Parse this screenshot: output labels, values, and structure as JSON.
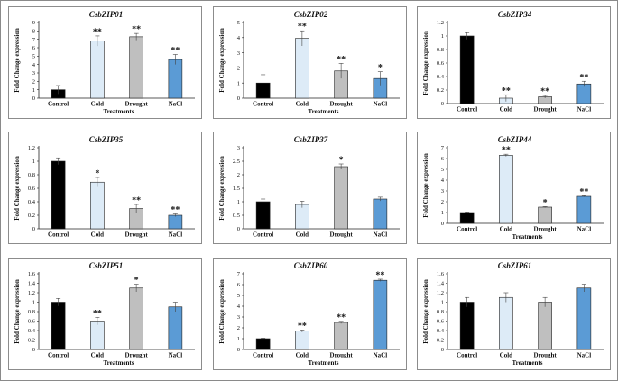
{
  "styles": {
    "bar_colors": [
      "#000000",
      "#ddebf7",
      "#bfbfbf",
      "#5b9bd5"
    ],
    "bar_stroke": "#222222",
    "axis_color": "#222222"
  },
  "chart_data": [
    {
      "type": "bar",
      "title": "CsbZIP01",
      "categories": [
        "Control",
        "Cold",
        "Drought",
        "NaCl"
      ],
      "values": [
        1,
        6.8,
        7.3,
        4.6
      ],
      "errors": [
        0.5,
        0.6,
        0.4,
        0.6
      ],
      "significance": [
        "",
        "**",
        "**",
        "**"
      ],
      "ylabel": "Fold Change expression",
      "xlabel": "Treatments",
      "ylim": [
        0,
        9
      ],
      "yticks": [
        "0",
        "1",
        "2",
        "3",
        "4",
        "5",
        "6",
        "7",
        "8",
        "9"
      ]
    },
    {
      "type": "bar",
      "title": "CsbZIP02",
      "categories": [
        "Control",
        "Cold",
        "Drought",
        "NaCl"
      ],
      "values": [
        1,
        3.95,
        1.8,
        1.3
      ],
      "errors": [
        0.55,
        0.5,
        0.5,
        0.45
      ],
      "significance": [
        "",
        "**",
        "**",
        "*"
      ],
      "ylabel": "Fold Change expression",
      "xlabel": "Treatments",
      "ylim": [
        0,
        5
      ],
      "yticks": [
        "0",
        "1",
        "2",
        "3",
        "4",
        "5"
      ]
    },
    {
      "type": "bar",
      "title": "CsbZIP34",
      "categories": [
        "Control",
        "Cold",
        "Drought",
        "NaCl"
      ],
      "values": [
        1,
        0.08,
        0.1,
        0.29
      ],
      "errors": [
        0.05,
        0.05,
        0.02,
        0.04
      ],
      "significance": [
        "",
        "**",
        "**",
        "**"
      ],
      "ylabel": "Fold Change expression",
      "xlabel": "",
      "ylim": [
        0,
        1.2
      ],
      "yticks": [
        "0",
        "0.2",
        "0.4",
        "0.6",
        "0.8",
        "1",
        "1.2"
      ]
    },
    {
      "type": "bar",
      "title": "CsbZIP35",
      "categories": [
        "Control",
        "Cold",
        "Drought",
        "NaCl"
      ],
      "values": [
        1,
        0.69,
        0.3,
        0.2
      ],
      "errors": [
        0.05,
        0.07,
        0.06,
        0.02
      ],
      "significance": [
        "",
        "*",
        "**",
        "**"
      ],
      "ylabel": "Fold Change expression",
      "xlabel": "",
      "ylim": [
        0,
        1.2
      ],
      "yticks": [
        "0",
        "0.2",
        "0.4",
        "0.6",
        "0.8",
        "1",
        "1.2"
      ]
    },
    {
      "type": "bar",
      "title": "CsbZIP37",
      "categories": [
        "Control",
        "Cold",
        "Drought",
        "NaCl"
      ],
      "values": [
        1,
        0.9,
        2.3,
        1.1
      ],
      "errors": [
        0.1,
        0.12,
        0.1,
        0.07
      ],
      "significance": [
        "",
        "",
        "*",
        ""
      ],
      "ylabel": "Fold Change expression",
      "xlabel": "",
      "ylim": [
        0,
        3
      ],
      "yticks": [
        "0",
        "0.5",
        "1",
        "1.5",
        "2",
        "2.5",
        "3"
      ]
    },
    {
      "type": "bar",
      "title": "CsbZIP44",
      "categories": [
        "Control",
        "Cold",
        "Drought",
        "NaCl"
      ],
      "values": [
        1,
        6.3,
        1.5,
        2.5
      ],
      "errors": [
        0.05,
        0.1,
        0.05,
        0.05
      ],
      "significance": [
        "",
        "**",
        "*",
        "**"
      ],
      "ylabel": "Fold Change expression",
      "xlabel": "Treatments",
      "ylim": [
        0,
        7
      ],
      "yticks": [
        "0",
        "1",
        "2",
        "3",
        "4",
        "5",
        "6",
        "7"
      ]
    },
    {
      "type": "bar",
      "title": "CsbZIP51",
      "categories": [
        "Control",
        "Cold",
        "Drought",
        "NaCl"
      ],
      "values": [
        1,
        0.6,
        1.3,
        0.9
      ],
      "errors": [
        0.08,
        0.08,
        0.08,
        0.1
      ],
      "significance": [
        "",
        "**",
        "*",
        ""
      ],
      "ylabel": "Fold Change expression",
      "xlabel": "Treatments",
      "ylim": [
        0,
        1.6
      ],
      "yticks": [
        "0",
        "0.2",
        "0.4",
        "0.6",
        "0.8",
        "1",
        "1.2",
        "1.4",
        "1.6"
      ]
    },
    {
      "type": "bar",
      "title": "CsbZIP60",
      "categories": [
        "Control",
        "Cold",
        "Drought",
        "NaCl"
      ],
      "values": [
        1,
        1.7,
        2.5,
        6.4
      ],
      "errors": [
        0.05,
        0.1,
        0.1,
        0.1
      ],
      "significance": [
        "",
        "**",
        "**",
        "**"
      ],
      "ylabel": "Fold Change expression",
      "xlabel": "Treatments",
      "ylim": [
        0,
        7
      ],
      "yticks": [
        "0",
        "1",
        "2",
        "3",
        "4",
        "5",
        "6",
        "7"
      ]
    },
    {
      "type": "bar",
      "title": "CsbZIP61",
      "categories": [
        "Control",
        "Cold",
        "Drought",
        "NaCl"
      ],
      "values": [
        1,
        1.1,
        1,
        1.3
      ],
      "errors": [
        0.1,
        0.1,
        0.1,
        0.08
      ],
      "significance": [
        "",
        "",
        "",
        ""
      ],
      "ylabel": "Fold Change expression",
      "xlabel": "Treatments",
      "ylim": [
        0,
        1.6
      ],
      "yticks": [
        "0",
        "0.2",
        "0.4",
        "0.6",
        "0.8",
        "1",
        "1.2",
        "1.4",
        "1.6"
      ]
    }
  ]
}
